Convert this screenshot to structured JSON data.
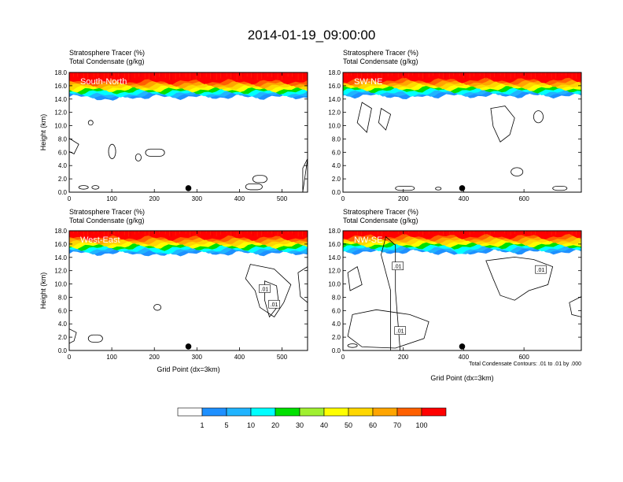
{
  "title": "2014-01-19_09:00:00",
  "panel_header_line1": "Stratosphere Tracer   (%)",
  "panel_header_line2": "Total Condensate   (g/kg)",
  "contour_note": "Total Condensate Contours: .01 to .01 by .000",
  "colorbar": {
    "labels": [
      "1",
      "5",
      "10",
      "20",
      "30",
      "40",
      "50",
      "60",
      "70",
      "100"
    ],
    "colors": [
      "#ffffff",
      "#1e90ff",
      "#20b4ff",
      "#00ffff",
      "#00fa9a",
      "#00e000",
      "#a0f030",
      "#ffff00",
      "#ffd700",
      "#ffa500",
      "#ff6000",
      "#ff0000"
    ]
  },
  "chart_data": [
    {
      "type": "contour-cross-section",
      "label": "South-North",
      "ylabel": "Height (km)",
      "xlabel": "",
      "xlim": [
        0,
        560
      ],
      "xticks": [
        "0",
        "100",
        "200",
        "300",
        "400",
        "500"
      ],
      "ylim": [
        0,
        18
      ],
      "yticks": [
        "0.0",
        "2.0",
        "4.0",
        "6.0",
        "8.0",
        "10.0",
        "12.0",
        "14.0",
        "16.0",
        "18.0"
      ],
      "marker_x": 280,
      "tracer_base_km": 14.3,
      "contour_labels": []
    },
    {
      "type": "contour-cross-section",
      "label": "SW-NE",
      "ylabel": "",
      "xlabel": "",
      "xlim": [
        0,
        790
      ],
      "xticks": [
        "0",
        "200",
        "400",
        "600"
      ],
      "ylim": [
        0,
        18
      ],
      "yticks": [
        "0.0",
        "2.0",
        "4.0",
        "6.0",
        "8.0",
        "10.0",
        "12.0",
        "14.0",
        "16.0",
        "18.0"
      ],
      "marker_x": 395,
      "tracer_base_km": 14.5,
      "contour_labels": []
    },
    {
      "type": "contour-cross-section",
      "label": "West-East",
      "ylabel": "Height (km)",
      "xlabel": "Grid Point (dx=3km)",
      "xlim": [
        0,
        560
      ],
      "xticks": [
        "0",
        "100",
        "200",
        "300",
        "400",
        "500"
      ],
      "ylim": [
        0,
        18
      ],
      "yticks": [
        "0.0",
        "2.0",
        "4.0",
        "6.0",
        "8.0",
        "10.0",
        "12.0",
        "14.0",
        "16.0",
        "18.0"
      ],
      "marker_x": 280,
      "tracer_base_km": 14.6,
      "contour_labels": [
        ".01",
        ".01"
      ]
    },
    {
      "type": "contour-cross-section",
      "label": "NW-SE",
      "ylabel": "",
      "xlabel": "Grid Point (dx=3km)",
      "xlim": [
        0,
        790
      ],
      "xticks": [
        "0",
        "200",
        "400",
        "600"
      ],
      "ylim": [
        0,
        18
      ],
      "yticks": [
        "0.0",
        "2.0",
        "4.0",
        "6.0",
        "8.0",
        "10.0",
        "12.0",
        "14.0",
        "16.0",
        "18.0"
      ],
      "marker_x": 395,
      "tracer_base_km": 14.8,
      "contour_labels": [
        ".01",
        ".01",
        ".01"
      ]
    }
  ]
}
